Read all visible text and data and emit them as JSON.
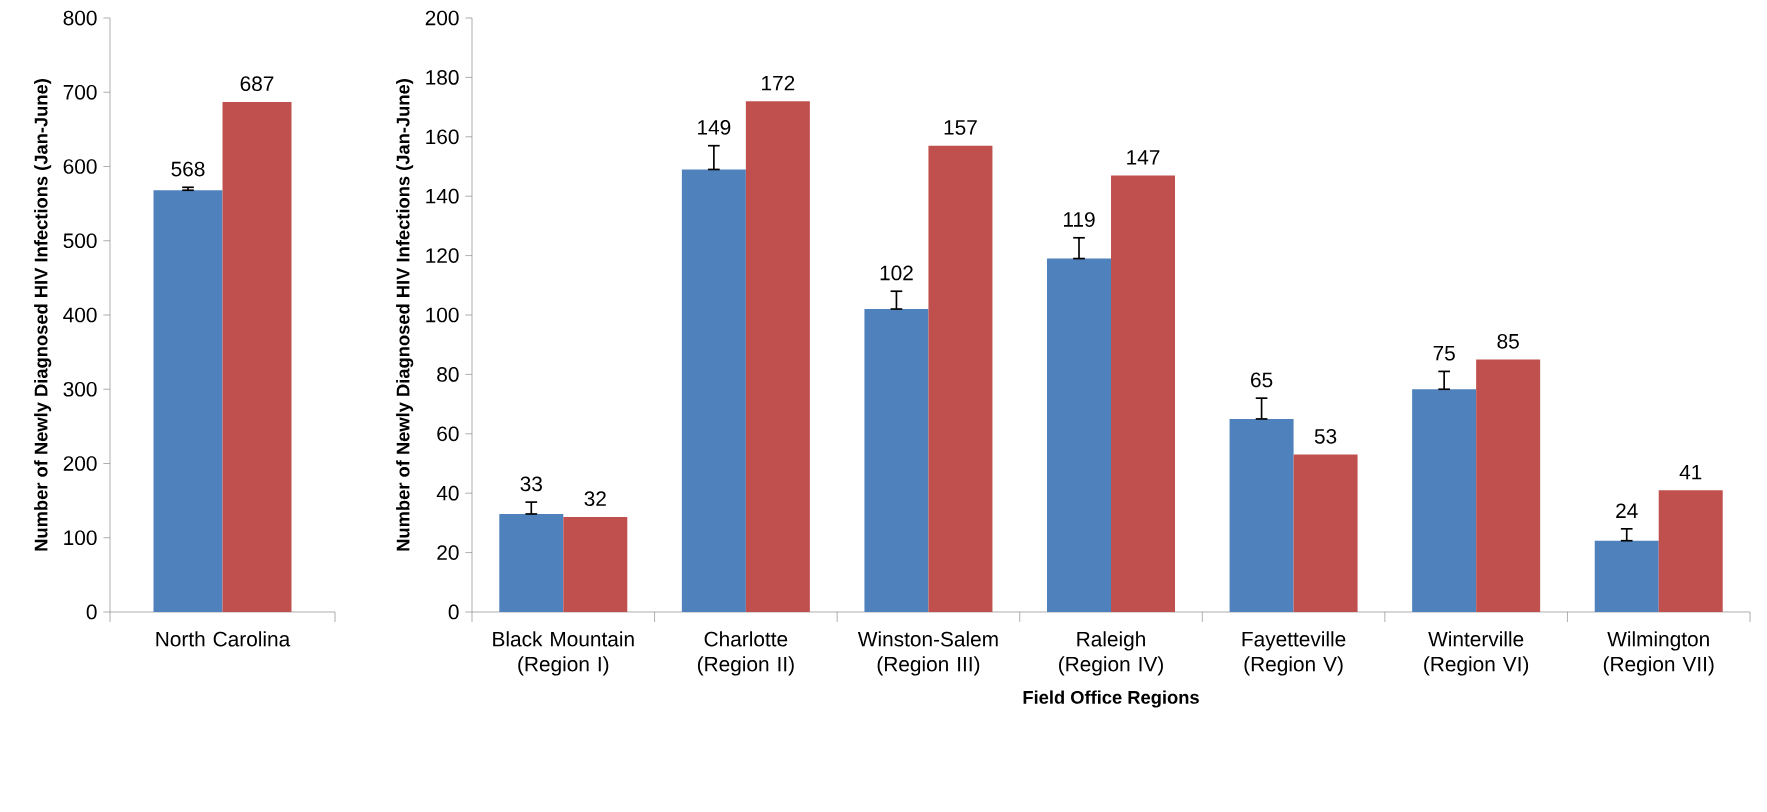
{
  "chart_data": [
    {
      "type": "bar",
      "categories": [
        "North Carolina"
      ],
      "ylabel": "Number of Newly Diagnosed HIV Infections (Jan-June)",
      "ylim": [
        0,
        800
      ],
      "yticks": [
        0,
        100,
        200,
        300,
        400,
        500,
        600,
        700,
        800
      ],
      "data_labels": true,
      "series": [
        {
          "color": "#4f81bd",
          "values": [
            568
          ],
          "errors": [
            [
              568,
              572
            ]
          ]
        },
        {
          "color": "#c0504d",
          "values": [
            687
          ]
        }
      ]
    },
    {
      "type": "bar",
      "categories": [
        "Black Mountain (Region I)",
        "Charlotte (Region II)",
        "Winston-Salem (Region III)",
        "Raleigh (Region IV)",
        "Fayetteville (Region V)",
        "Winterville (Region VI)",
        "Wilmington (Region VII)"
      ],
      "xlabel": "Field Office Regions",
      "ylabel": "Number of Newly Diagnosed HIV Infections (Jan-June)",
      "ylim": [
        0,
        200
      ],
      "yticks": [
        0,
        20,
        40,
        60,
        80,
        100,
        120,
        140,
        160,
        180,
        200
      ],
      "data_labels": true,
      "series": [
        {
          "color": "#4f81bd",
          "values": [
            33,
            149,
            102,
            119,
            65,
            75,
            24
          ],
          "errors": [
            [
              33,
              37
            ],
            [
              149,
              157
            ],
            [
              102,
              108
            ],
            [
              119,
              126
            ],
            [
              65,
              72
            ],
            [
              75,
              81
            ],
            [
              24,
              28
            ]
          ]
        },
        {
          "color": "#c0504d",
          "values": [
            32,
            172,
            157,
            147,
            53,
            85,
            41
          ]
        }
      ]
    }
  ]
}
